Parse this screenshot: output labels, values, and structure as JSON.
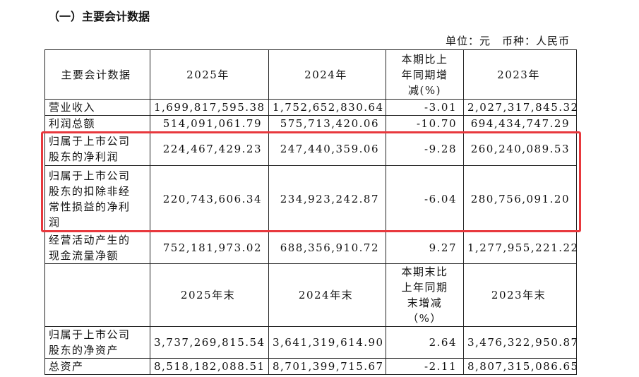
{
  "header": {
    "title": "（一）主要会计数据",
    "unit": "单位：元　币种：人民币"
  },
  "table": {
    "rows": [
      [
        "主要会计数据",
        "2025年",
        "2024年",
        "本期比上年同期增减(%)",
        "2023年"
      ],
      [
        "营业收入",
        "1,699,817,595.38",
        "1,752,652,830.64",
        "-3.01",
        "2,027,317,845.32"
      ],
      [
        "利润总额",
        "514,091,061.79",
        "575,713,420.06",
        "-10.70",
        "694,434,747.29"
      ],
      [
        "归属于上市公司股东的净利润",
        "224,467,429.23",
        "247,440,359.06",
        "-9.28",
        "260,240,089.53"
      ],
      [
        "归属于上市公司股东的扣除非经常性损益的净利润",
        "220,743,606.34",
        "234,923,242.87",
        "-6.04",
        "280,756,091.20"
      ],
      [
        "经营活动产生的现金流量净额",
        "752,181,973.02",
        "688,356,910.72",
        "9.27",
        "1,277,955,221.22"
      ],
      [
        null,
        "2025年末",
        "2024年末",
        "本期末比上年同期末增减（%）",
        "2023年末"
      ],
      [
        "归属于上市公司股东的净资产",
        "3,737,269,815.54",
        "3,641,319,614.90",
        "2.64",
        "3,476,322,950.87"
      ],
      [
        "总资产",
        "8,518,182,088.51",
        "8,701,399,715.67",
        "-2.11",
        "8,807,315,086.65"
      ]
    ]
  }
}
